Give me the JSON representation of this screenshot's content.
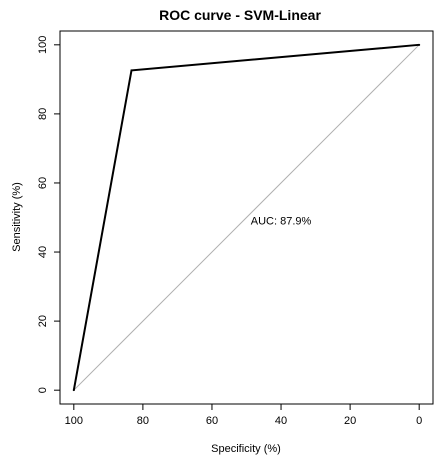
{
  "chart_data": {
    "type": "line",
    "title": "ROC curve - SVM-Linear",
    "xlabel": "Specificity (%)",
    "ylabel": "Sensitivity (%)",
    "x_reversed": true,
    "xlim": [
      100,
      0
    ],
    "ylim": [
      0,
      100
    ],
    "xticks": [
      100,
      80,
      60,
      40,
      20,
      0
    ],
    "yticks": [
      0,
      20,
      40,
      60,
      80,
      100
    ],
    "grid": false,
    "series": [
      {
        "x": [
          100,
          83.3,
          0
        ],
        "y": [
          0,
          92.6,
          100
        ],
        "color": "#000000"
      }
    ],
    "reference_line": {
      "x": [
        100,
        0
      ],
      "y": [
        0,
        100
      ],
      "color": "#b0b0b0"
    },
    "annotations": [
      {
        "text": "AUC: 87.9%",
        "x": 40,
        "y": 48
      }
    ]
  }
}
